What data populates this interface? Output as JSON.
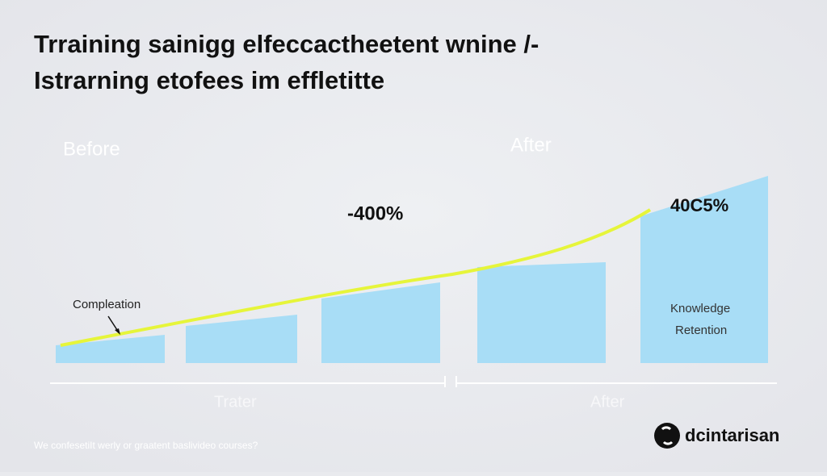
{
  "header": {
    "title_lines": [
      "Trraining sainigg elfeccactheetent wnine /-",
      "Istrarning etofees im effletitte"
    ]
  },
  "labels": {
    "before": "Before",
    "after_top": "After",
    "change_left": "-400%",
    "change_right": "40C5%",
    "completion": "Compleation",
    "knowledge": "Knowledge",
    "retention": "Retention",
    "axis_left": "Trater",
    "axis_right": "After"
  },
  "footer": {
    "note": "We confesetiIt werly or graatent baslivideo courses?",
    "brand": "dcintarisan"
  }
}
